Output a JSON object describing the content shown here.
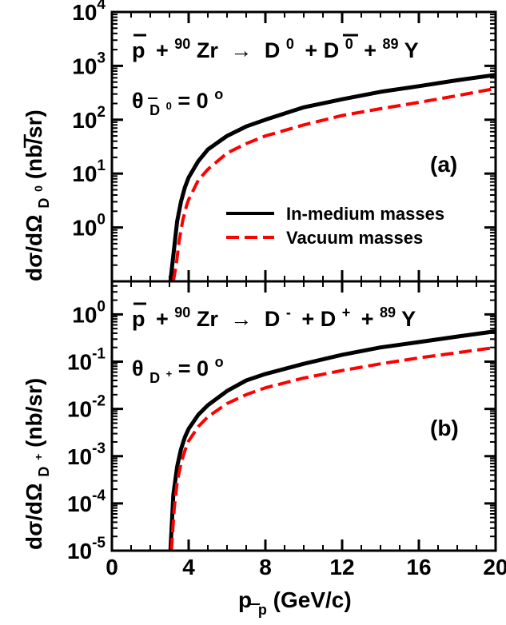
{
  "chart_data": [
    {
      "type": "line",
      "panel": "(a)",
      "reaction": {
        "p": "p",
        "zr_mass": "90",
        "zr": "Zr",
        "arrow": "→",
        "meson1": "D",
        "meson1_sup": "0",
        "meson2": "D",
        "meson2_sup": "0",
        "y_mass": "89",
        "y": "Y"
      },
      "angle_label": {
        "theta": "θ",
        "sub": "D",
        "sub_sup": "0",
        "value": " = 0",
        "deg": "o"
      },
      "ylabel": {
        "main": "dσ/dΩ",
        "sub": "D",
        "sub_sup": "0",
        "units": " (nb/sr)"
      },
      "ylog": true,
      "ylim_log10": [
        -1.0,
        4.0
      ],
      "yticks": [
        {
          "base": "10",
          "exp": "0",
          "log": 0
        },
        {
          "base": "10",
          "exp": "1",
          "log": 1
        },
        {
          "base": "10",
          "exp": "2",
          "log": 2
        },
        {
          "base": "10",
          "exp": "3",
          "log": 3
        },
        {
          "base": "10",
          "exp": "4",
          "log": 4
        }
      ],
      "xlim": [
        0,
        20
      ],
      "legend": {
        "position": "lower-right",
        "entries": [
          "In-medium masses",
          "Vacuum masses"
        ]
      },
      "series": [
        {
          "name": "In-medium masses",
          "style": "solid",
          "color": "#000000",
          "x": [
            3.05,
            3.2,
            3.4,
            3.6,
            3.8,
            4.0,
            4.5,
            5.0,
            6.0,
            7.0,
            8.0,
            10.0,
            12.0,
            14.0,
            16.0,
            18.0,
            20.0
          ],
          "y": [
            0.03,
            0.3,
            1.3,
            3.0,
            5.5,
            8.5,
            17,
            28,
            50,
            75,
            100,
            170,
            240,
            330,
            420,
            540,
            680
          ]
        },
        {
          "name": "Vacuum masses",
          "style": "dashed",
          "color": "#ff0000",
          "x": [
            3.2,
            3.35,
            3.5,
            3.7,
            3.9,
            4.0,
            4.5,
            5.0,
            6.0,
            7.0,
            8.0,
            10.0,
            12.0,
            14.0,
            16.0,
            18.0,
            20.0
          ],
          "y": [
            0.03,
            0.2,
            0.55,
            1.4,
            2.6,
            3.3,
            7.5,
            12,
            24,
            36,
            50,
            80,
            120,
            160,
            210,
            280,
            380
          ]
        }
      ]
    },
    {
      "type": "line",
      "panel": "(b)",
      "reaction": {
        "p": "p",
        "zr_mass": "90",
        "zr": "Zr",
        "arrow": "→",
        "meson1": "D",
        "meson1_sup": "-",
        "meson2": "D",
        "meson2_sup": "+",
        "y_mass": "89",
        "y": "Y"
      },
      "angle_label": {
        "theta": "θ",
        "sub": "D",
        "sub_sup": "+",
        "value": " = 0",
        "deg": "o"
      },
      "ylabel": {
        "main": "dσ/dΩ",
        "sub": "D",
        "sub_sup": "+",
        "units": " (nb/sr)"
      },
      "ylog": true,
      "ylim_log10": [
        -5.0,
        0.7
      ],
      "yticks": [
        {
          "base": "10",
          "exp": "-5",
          "log": -5
        },
        {
          "base": "10",
          "exp": "-4",
          "log": -4
        },
        {
          "base": "10",
          "exp": "-3",
          "log": -3
        },
        {
          "base": "10",
          "exp": "-2",
          "log": -2
        },
        {
          "base": "10",
          "exp": "-1",
          "log": -1
        },
        {
          "base": "10",
          "exp": "0",
          "log": 0
        }
      ],
      "xlim": [
        0,
        20
      ],
      "xticks": [
        "0",
        "4",
        "8",
        "12",
        "16",
        "20"
      ],
      "xlabel": {
        "main": "p",
        "sub": "p",
        "units": " (GeV/c)"
      },
      "series": [
        {
          "name": "In-medium masses",
          "style": "solid",
          "color": "#000000",
          "x": [
            3.05,
            3.2,
            3.4,
            3.6,
            3.8,
            4.0,
            4.5,
            5.0,
            6.0,
            7.0,
            8.0,
            10.0,
            12.0,
            14.0,
            16.0,
            18.0,
            20.0
          ],
          "y": [
            1e-05,
            0.00015,
            0.0006,
            0.0014,
            0.0025,
            0.0038,
            0.0075,
            0.012,
            0.024,
            0.04,
            0.055,
            0.09,
            0.14,
            0.2,
            0.26,
            0.34,
            0.44
          ]
        },
        {
          "name": "Vacuum masses",
          "style": "dashed",
          "color": "#ff0000",
          "x": [
            3.1,
            3.25,
            3.4,
            3.6,
            3.8,
            4.0,
            4.5,
            5.0,
            6.0,
            7.0,
            8.0,
            10.0,
            12.0,
            14.0,
            16.0,
            18.0,
            20.0
          ],
          "y": [
            1e-05,
            8e-05,
            0.00028,
            0.0007,
            0.0013,
            0.0021,
            0.0042,
            0.0068,
            0.013,
            0.02,
            0.028,
            0.045,
            0.065,
            0.09,
            0.12,
            0.155,
            0.2
          ]
        }
      ]
    }
  ]
}
